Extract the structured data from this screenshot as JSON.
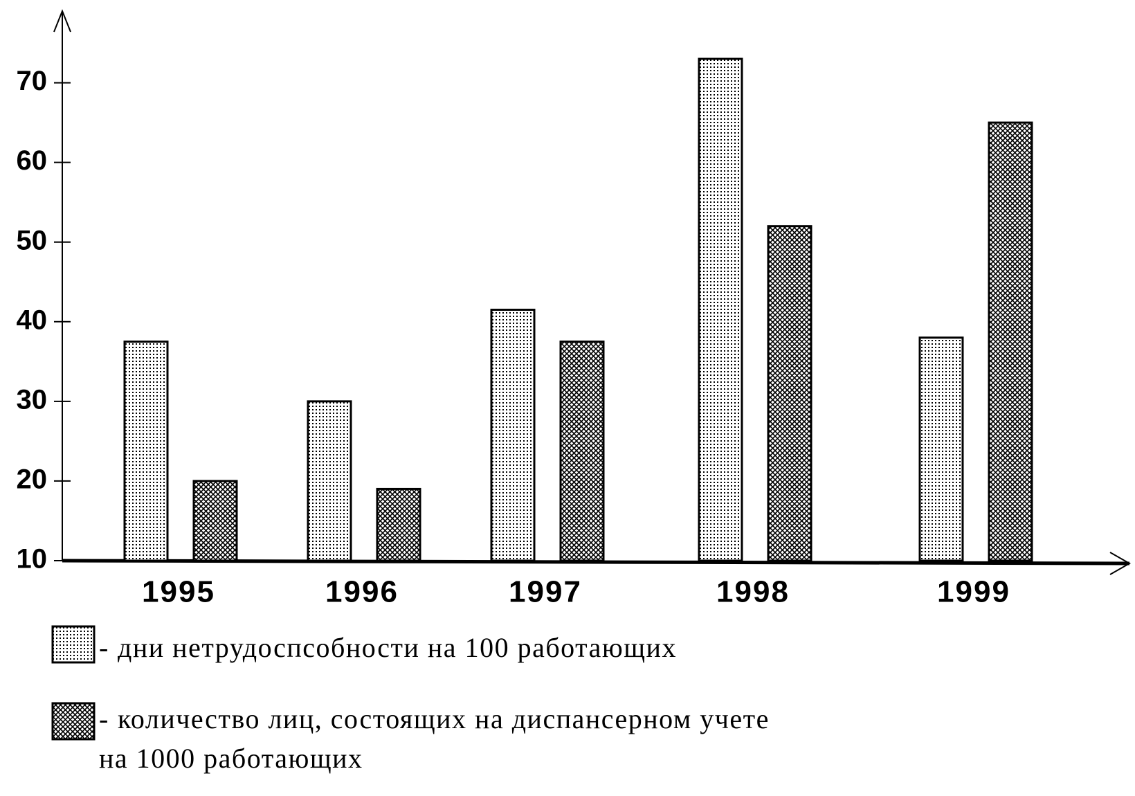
{
  "chart_data": {
    "type": "bar",
    "categories": [
      "1995",
      "1996",
      "1997",
      "1998",
      "1999"
    ],
    "series": [
      {
        "name": "дни нетрудоспсобности на 100 работающих",
        "color": "#000000",
        "pattern": "dots",
        "values": [
          37.5,
          30,
          41.5,
          73,
          38
        ]
      },
      {
        "name": "количество лиц, состоящих на диспансерном учете на 1000 работающих",
        "color": "#000000",
        "pattern": "crosshatch",
        "values": [
          20,
          19,
          37.5,
          52,
          65
        ]
      }
    ],
    "ylim": [
      10,
      79
    ],
    "yticks": [
      10,
      20,
      30,
      40,
      50,
      60,
      70
    ],
    "grid": false
  }
}
